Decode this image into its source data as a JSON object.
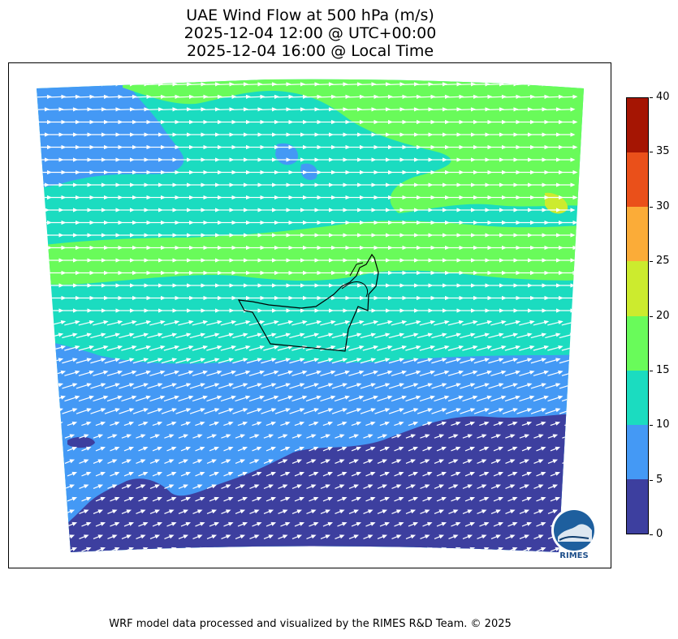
{
  "title": {
    "line1": "UAE Wind Flow at 500 hPa (m/s)",
    "line2": "2025-12-04 12:00 @ UTC+00:00",
    "line3": "2025-12-04 16:00 @ Local Time"
  },
  "colorbar": {
    "ticks": [
      "0",
      "5",
      "10",
      "15",
      "20",
      "25",
      "30",
      "35",
      "40"
    ],
    "colors": [
      "#3d3f9f",
      "#4499f5",
      "#1bdcc0",
      "#69fb5a",
      "#cceb2e",
      "#fbac38",
      "#ea501a",
      "#a51503"
    ]
  },
  "logo": {
    "text": "RIMES",
    "icon": "rimes-logo-icon"
  },
  "footer": "WRF model data processed and visualized by the RIMES R&D Team. © 2025",
  "chart_data": {
    "type": "heatmap",
    "title": "UAE Wind Flow at 500 hPa (m/s)",
    "subtitle": [
      "2025-12-04 12:00 @ UTC+00:00",
      "2025-12-04 16:00 @ Local Time"
    ],
    "colorbar_range": [
      0,
      40
    ],
    "colorbar_levels": [
      0,
      5,
      10,
      15,
      20,
      25,
      30,
      35,
      40
    ],
    "vector_field": "wind arrows, predominantly west-to-east flow",
    "legend_position": "right"
  }
}
